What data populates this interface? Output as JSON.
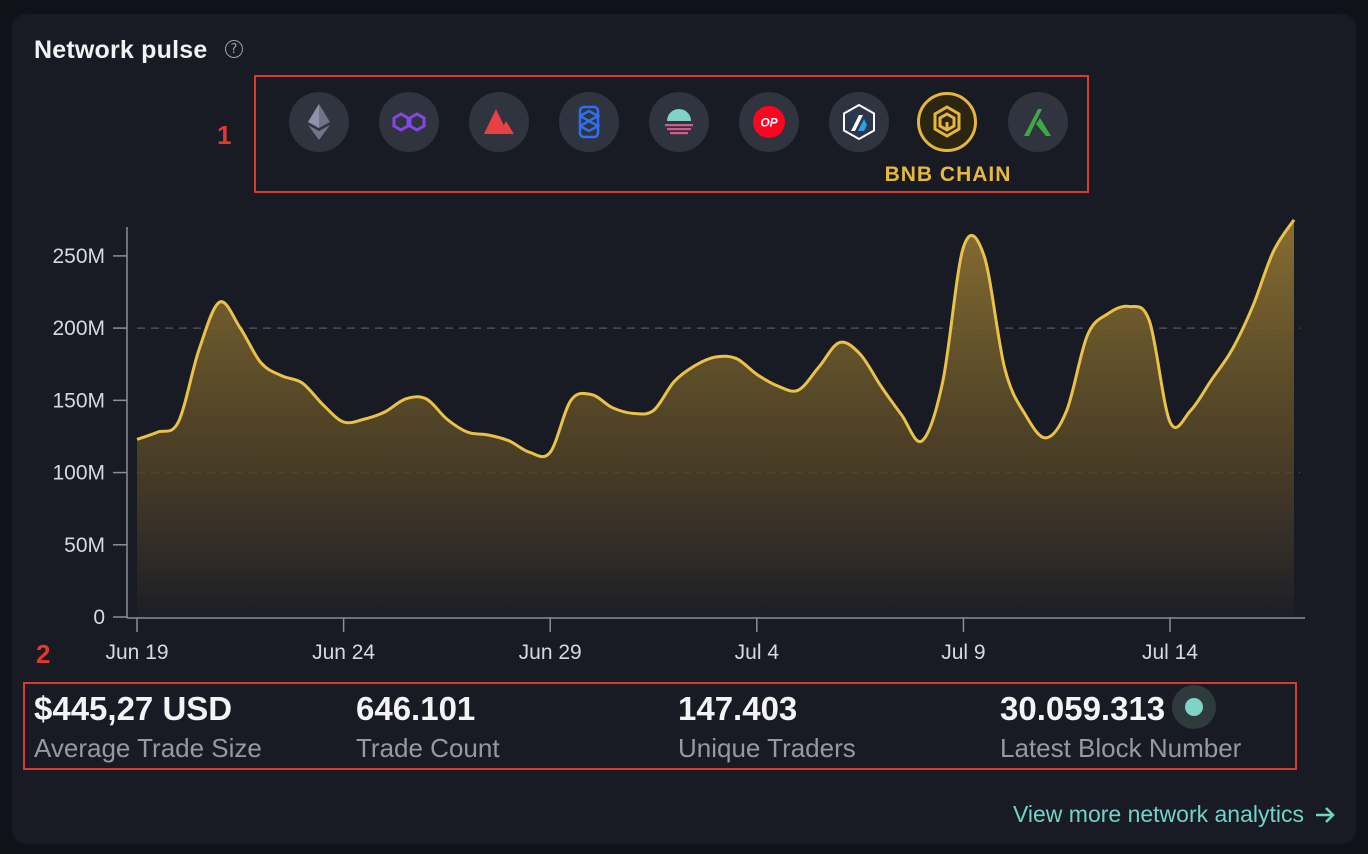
{
  "header": {
    "title": "Network pulse",
    "help_icon": "?"
  },
  "annotations": {
    "box1_number": "1",
    "box2_number": "2"
  },
  "chains": {
    "selected_label": "BNB CHAIN",
    "items": [
      {
        "icon": "ethereum-icon"
      },
      {
        "icon": "polygon-icon"
      },
      {
        "icon": "avalanche-icon"
      },
      {
        "icon": "fantom-icon"
      },
      {
        "icon": "celo-icon"
      },
      {
        "icon": "optimism-icon",
        "text": "OP"
      },
      {
        "icon": "arbitrum-icon"
      },
      {
        "icon": "bnb-chain-icon",
        "selected": true
      },
      {
        "icon": "algorand-icon"
      }
    ]
  },
  "colors": {
    "line": "#e9c24a",
    "fill_top": "#8a7030",
    "accent": "#e6b53b",
    "link": "#72d3c6"
  },
  "chart_data": {
    "type": "area",
    "title": "",
    "xlabel": "",
    "ylabel": "",
    "ylim": [
      0,
      270000000
    ],
    "yticks": [
      0,
      50000000,
      100000000,
      150000000,
      200000000,
      250000000
    ],
    "ytick_labels": [
      "0",
      "50M",
      "100M",
      "150M",
      "200M",
      "250M"
    ],
    "xticks": [
      {
        "day": 0,
        "label": "Jun 19"
      },
      {
        "day": 5,
        "label": "Jun 24"
      },
      {
        "day": 10,
        "label": "Jun 29"
      },
      {
        "day": 15,
        "label": "Jul 4"
      },
      {
        "day": 20,
        "label": "Jul 9"
      },
      {
        "day": 25,
        "label": "Jul 14"
      }
    ],
    "grid_dashed_at": [
      100000000,
      200000000
    ],
    "series": [
      {
        "x_days": [
          0,
          0.5,
          1,
          1.5,
          2,
          2.5,
          3,
          3.5,
          4,
          4.5,
          5,
          5.5,
          6,
          6.5,
          7,
          7.5,
          8,
          8.5,
          9,
          9.5,
          10,
          10.5,
          11,
          11.5,
          12,
          12.5,
          13,
          13.5,
          14,
          14.5,
          15,
          15.5,
          16,
          16.5,
          17,
          17.5,
          18,
          18.5,
          19,
          19.5,
          20,
          20.5,
          21,
          21.5,
          22,
          22.5,
          23,
          23.5,
          24,
          24.5,
          25,
          25.5,
          26,
          26.5,
          27,
          27.5,
          28
        ],
        "values": [
          123000000,
          128000000,
          135000000,
          185000000,
          218000000,
          200000000,
          176000000,
          167000000,
          162000000,
          147000000,
          135000000,
          137000000,
          142000000,
          151000000,
          151000000,
          137000000,
          128000000,
          126000000,
          122000000,
          114000000,
          114000000,
          150000000,
          154000000,
          145000000,
          141000000,
          143000000,
          163000000,
          174000000,
          180000000,
          179000000,
          168000000,
          160000000,
          157000000,
          173000000,
          190000000,
          182000000,
          160000000,
          140000000,
          122000000,
          163000000,
          256000000,
          250000000,
          172000000,
          140000000,
          124000000,
          143000000,
          195000000,
          210000000,
          215000000,
          205000000,
          135000000,
          143000000,
          164000000,
          185000000,
          215000000,
          253000000,
          275000000
        ]
      }
    ]
  },
  "stats": [
    {
      "value": "$445,27 USD",
      "label": "Average Trade Size"
    },
    {
      "value": "646.101",
      "label": "Trade Count"
    },
    {
      "value": "147.403",
      "label": "Unique Traders"
    },
    {
      "value": "30.059.313",
      "label": "Latest Block Number"
    }
  ],
  "footer": {
    "link_label": "View more network analytics",
    "link_icon": "arrow-right-icon"
  }
}
